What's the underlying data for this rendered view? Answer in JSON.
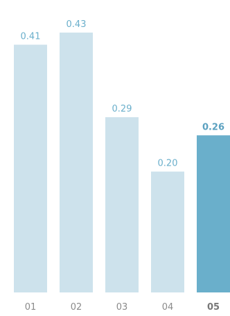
{
  "chart_data": {
    "type": "bar",
    "categories": [
      "01",
      "02",
      "03",
      "04",
      "05"
    ],
    "values": [
      0.41,
      0.43,
      0.29,
      0.2,
      0.26
    ],
    "value_labels": [
      "0.41",
      "0.43",
      "0.29",
      "0.20",
      "0.26"
    ],
    "highlight_index": 4,
    "title": "",
    "xlabel": "",
    "ylabel": "",
    "ylim": [
      0,
      0.45
    ],
    "grid": false,
    "colors": {
      "bar": "#cde2ec",
      "bar_highlight": "#6aafcb",
      "value_label": "#6aafcb",
      "tick_label": "#8a8a8a"
    }
  }
}
